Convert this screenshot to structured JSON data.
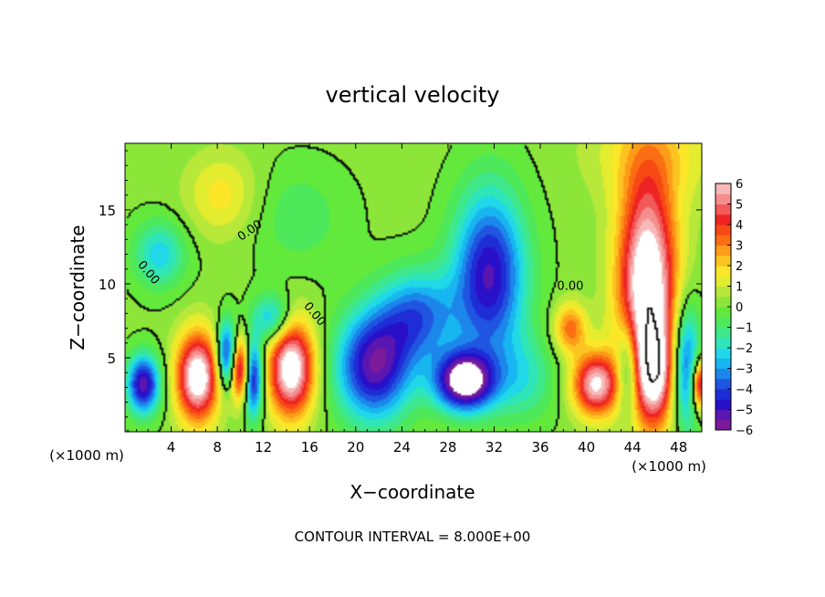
{
  "chart_data": {
    "type": "heatmap",
    "title": "vertical velocity",
    "xlabel": "X−coordinate",
    "ylabel": "Z−coordinate",
    "x_unit_label": "(×1000 m)",
    "x_unit_label_right": "(×1000 m)",
    "footer": "CONTOUR INTERVAL = 8.000E+00",
    "xlim": [
      0,
      50
    ],
    "ylim": [
      0,
      19.5
    ],
    "x_ticks": [
      {
        "value": 4,
        "label": "4"
      },
      {
        "value": 8,
        "label": "8"
      },
      {
        "value": 12,
        "label": "12"
      },
      {
        "value": 16,
        "label": "16"
      },
      {
        "value": 20,
        "label": "20"
      },
      {
        "value": 24,
        "label": "24"
      },
      {
        "value": 28,
        "label": "28"
      },
      {
        "value": 32,
        "label": "32"
      },
      {
        "value": 36,
        "label": "36"
      },
      {
        "value": 40,
        "label": "40"
      },
      {
        "value": 44,
        "label": "44"
      },
      {
        "value": 48,
        "label": "48"
      }
    ],
    "y_ticks": [
      {
        "value": 5,
        "label": "5"
      },
      {
        "value": 10,
        "label": "10"
      },
      {
        "value": 15,
        "label": "15"
      }
    ],
    "contour_labels": [
      {
        "x": 11,
        "z": 13.4,
        "text": "0.00",
        "angle": -35
      },
      {
        "x": 1.8,
        "z": 10.6,
        "text": "0.00",
        "angle": 50
      },
      {
        "x": 16.2,
        "z": 7.8,
        "text": "0.00",
        "angle": 50
      },
      {
        "x": 38.6,
        "z": 9.6,
        "text": "0.00",
        "angle": 0
      }
    ],
    "colorbar": {
      "min": -6,
      "max": 6,
      "ticks": [
        {
          "value": 6,
          "label": "6"
        },
        {
          "value": 5,
          "label": "5"
        },
        {
          "value": 4,
          "label": "4"
        },
        {
          "value": 3,
          "label": "3"
        },
        {
          "value": 2,
          "label": "2"
        },
        {
          "value": 1,
          "label": "1"
        },
        {
          "value": 0,
          "label": "0"
        },
        {
          "value": -1,
          "label": "−1"
        },
        {
          "value": -2,
          "label": "−2"
        },
        {
          "value": -3,
          "label": "−3"
        },
        {
          "value": -4,
          "label": "−4"
        },
        {
          "value": -5,
          "label": "−5"
        },
        {
          "value": -6,
          "label": "−6"
        }
      ],
      "colors": [
        "#7b1a9b",
        "#5a16b0",
        "#2a0fc8",
        "#1e2dd6",
        "#1f55e0",
        "#1c86ea",
        "#18b6f0",
        "#20d8e8",
        "#2fe6b9",
        "#3fe88a",
        "#4ee85b",
        "#63e83c",
        "#8ce63a",
        "#b8e83a",
        "#e3ec2f",
        "#fbe628",
        "#fcc420",
        "#fc9c18",
        "#fb6e14",
        "#f84814",
        "#ee2424",
        "#f25a5a",
        "#f58e8e",
        "#f8b8b8"
      ]
    },
    "features": [
      {
        "x": 1.6,
        "z": 3.2,
        "amplitude": -5.5,
        "sx": 1.0,
        "sz": 1.4
      },
      {
        "x": 6.3,
        "z": 3.7,
        "amplitude": 7.0,
        "sx": 1.3,
        "sz": 2.1
      },
      {
        "x": 8.8,
        "z": 5.2,
        "amplitude": -5.0,
        "sx": 0.6,
        "sz": 1.6
      },
      {
        "x": 10.0,
        "z": 4.2,
        "amplitude": 5.5,
        "sx": 0.6,
        "sz": 1.5
      },
      {
        "x": 11.1,
        "z": 3.6,
        "amplitude": -5.5,
        "sx": 0.6,
        "sz": 1.8
      },
      {
        "x": 14.4,
        "z": 4.3,
        "amplitude": 7.0,
        "sx": 1.4,
        "sz": 2.3
      },
      {
        "x": 21.6,
        "z": 4.4,
        "amplitude": -5.5,
        "sx": 2.3,
        "sz": 2.6
      },
      {
        "x": 29.4,
        "z": 3.4,
        "amplitude": -7.0,
        "sx": 1.8,
        "sz": 1.4
      },
      {
        "x": 31.6,
        "z": 10.6,
        "amplitude": -5.2,
        "sx": 2.2,
        "sz": 4.0
      },
      {
        "x": 25.4,
        "z": 7.8,
        "amplitude": -3.6,
        "sx": 2.4,
        "sz": 2.2
      },
      {
        "x": 34.5,
        "z": 3.6,
        "amplitude": -1.8,
        "sx": 2.0,
        "sz": 2.0
      },
      {
        "x": 45.3,
        "z": 9.8,
        "amplitude": 7.5,
        "sx": 1.8,
        "sz": 5.2
      },
      {
        "x": 45.9,
        "z": 3.8,
        "amplitude": 4.5,
        "sx": 1.2,
        "sz": 2.4
      },
      {
        "x": 40.8,
        "z": 3.2,
        "amplitude": 6.0,
        "sx": 1.4,
        "sz": 1.5
      },
      {
        "x": 38.6,
        "z": 7.0,
        "amplitude": 3.2,
        "sx": 1.0,
        "sz": 1.2
      },
      {
        "x": 43.6,
        "z": 4.2,
        "amplitude": -3.6,
        "sx": 0.7,
        "sz": 2.2
      },
      {
        "x": 48.6,
        "z": 4.5,
        "amplitude": -4.5,
        "sx": 0.9,
        "sz": 3.0
      },
      {
        "x": 49.8,
        "z": 3.2,
        "amplitude": 5.5,
        "sx": 0.5,
        "sz": 1.2
      },
      {
        "x": 3.0,
        "z": 12.0,
        "amplitude": -2.5,
        "sx": 1.6,
        "sz": 1.6
      },
      {
        "x": 12.8,
        "z": 7.6,
        "amplitude": -3.2,
        "sx": 1.2,
        "sz": 1.2
      },
      {
        "x": 8.4,
        "z": 16.0,
        "amplitude": 1.6,
        "sx": 2.2,
        "sz": 2.0
      },
      {
        "x": 15.0,
        "z": 14.5,
        "amplitude": -1.0,
        "sx": 3.0,
        "sz": 2.5
      },
      {
        "x": 46.0,
        "z": 19.0,
        "amplitude": 1.5,
        "sx": 4.0,
        "sz": 2.5
      }
    ]
  }
}
